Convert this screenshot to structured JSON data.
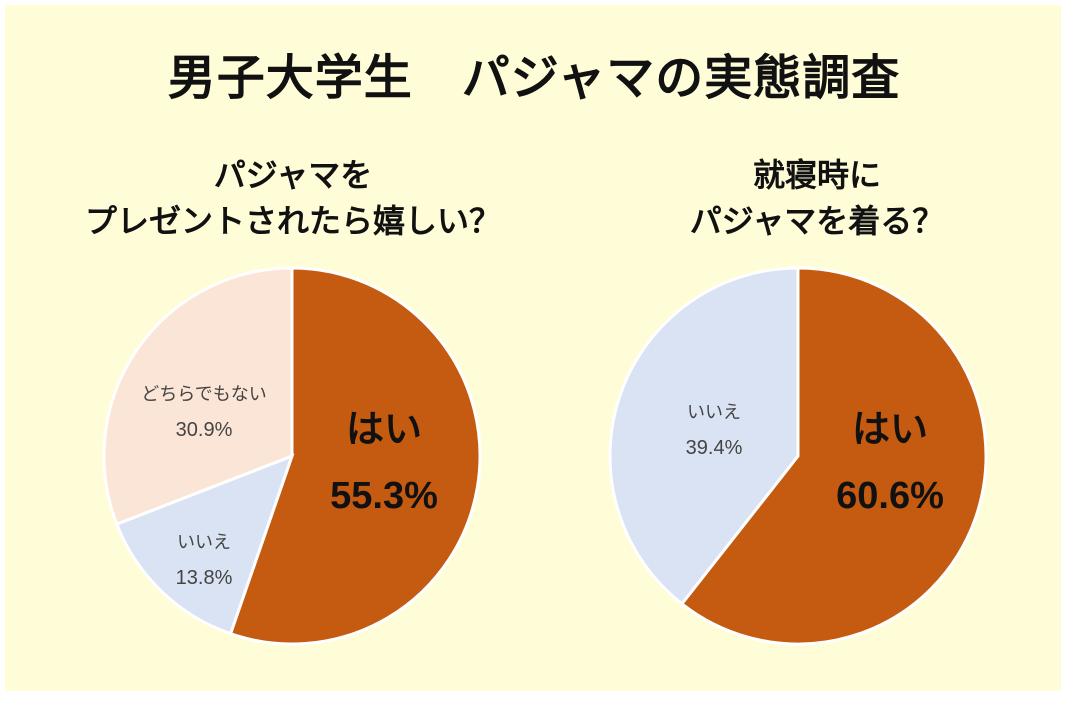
{
  "main_title": "男子大学生　パジャマの実態調査",
  "chart_data": [
    {
      "type": "pie",
      "title_lines": [
        "パジャマを",
        "プレゼントされたら嬉しい？"
      ],
      "slices": [
        {
          "label": "はい",
          "value": 55.3,
          "value_label": "55.3%",
          "color": "#c55a11"
        },
        {
          "label": "いいえ",
          "value": 13.8,
          "value_label": "13.8%",
          "color": "#dae3f3"
        },
        {
          "label": "どちらでもない",
          "value": 30.9,
          "value_label": "30.9%",
          "color": "#fbe5d6"
        }
      ]
    },
    {
      "type": "pie",
      "title_lines": [
        "就寝時に",
        "パジャマを着る？"
      ],
      "slices": [
        {
          "label": "はい",
          "value": 60.6,
          "value_label": "60.6%",
          "color": "#c55a11"
        },
        {
          "label": "いいえ",
          "value": 39.4,
          "value_label": "39.4%",
          "color": "#dae3f3"
        }
      ]
    }
  ]
}
